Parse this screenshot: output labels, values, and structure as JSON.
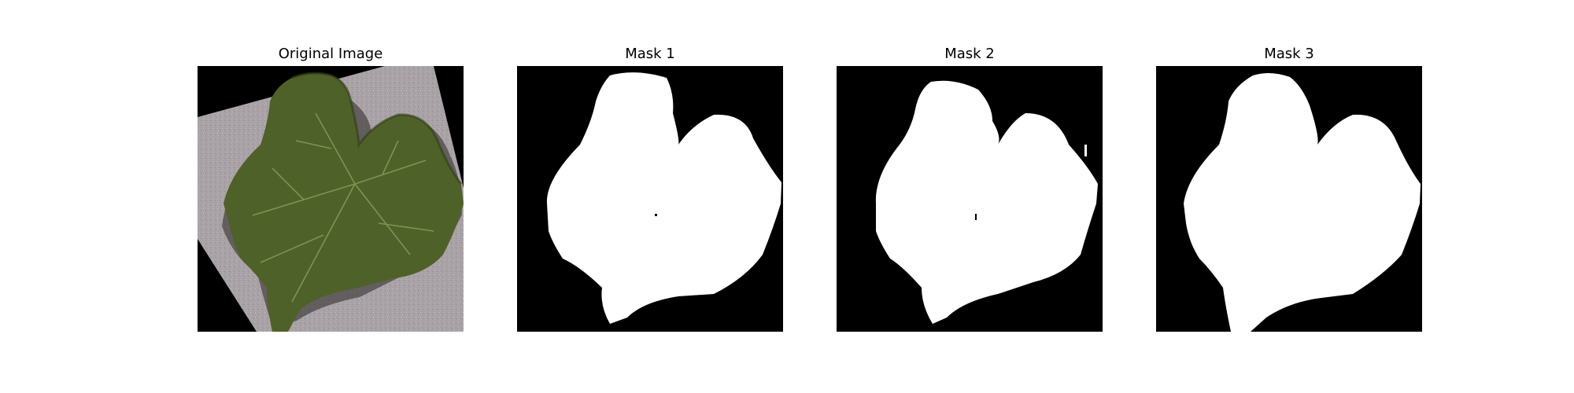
{
  "figure": {
    "panels": [
      {
        "title": "Original Image",
        "kind": "photo"
      },
      {
        "title": "Mask 1",
        "kind": "mask"
      },
      {
        "title": "Mask 2",
        "kind": "mask"
      },
      {
        "title": "Mask 3",
        "kind": "mask"
      }
    ]
  },
  "colors": {
    "background": "#ffffff",
    "mask_foreground": "#ffffff",
    "mask_background": "#000000",
    "photo_background_gray": "#a8a2a6",
    "leaf_green": "#4e6128",
    "leaf_dark": "#2f3c18",
    "leaf_vein": "#8a9a5a"
  }
}
